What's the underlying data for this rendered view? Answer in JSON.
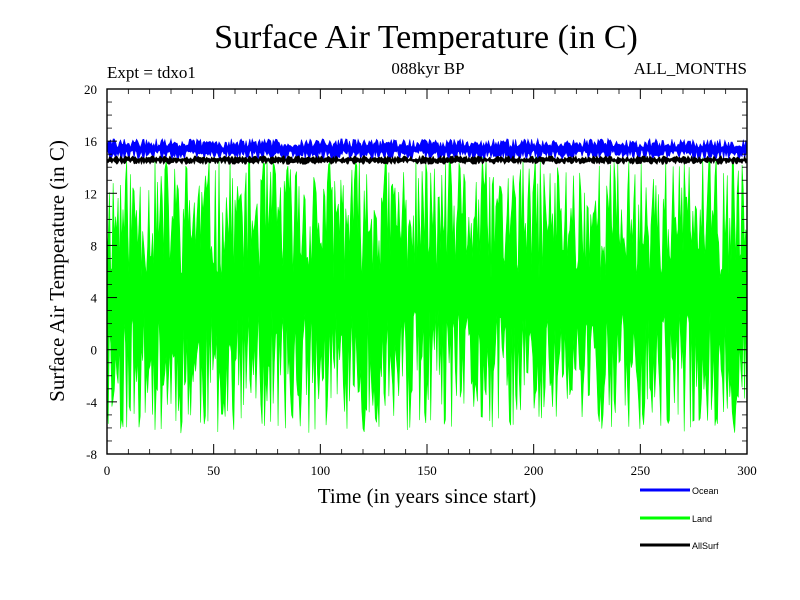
{
  "chart_data": {
    "type": "line",
    "title": "Surface Air Temperature (in C)",
    "subtitle": "088kyr BP",
    "annotations": {
      "left": "Expt = tdxo1",
      "right": "ALL_MONTHS"
    },
    "xlabel": "Time (in years since start)",
    "ylabel": "Surface Air Temperature (in C)",
    "xlim": [
      0,
      300
    ],
    "ylim": [
      -8,
      20
    ],
    "x_ticks": [
      0,
      50,
      100,
      150,
      200,
      250,
      300
    ],
    "y_ticks": [
      -8,
      -4,
      0,
      4,
      8,
      12,
      16,
      20
    ],
    "grid": false,
    "legend_position": "bottom-right",
    "series": [
      {
        "name": "Ocean",
        "color": "#0000ff",
        "min_approx": 14.6,
        "max_approx": 16.2
      },
      {
        "name": "Land",
        "color": "#00ff00",
        "min_approx": -6.4,
        "max_approx": 14.8
      },
      {
        "name": "AllSurf",
        "color": "#000000",
        "min_approx": 14.2,
        "max_approx": 14.9
      }
    ]
  }
}
